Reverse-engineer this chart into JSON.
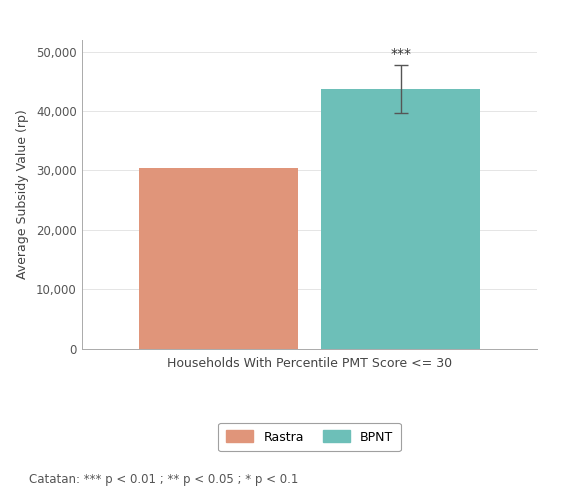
{
  "categories": [
    "Rastra",
    "BPNT"
  ],
  "values": [
    30500,
    43700
  ],
  "bar_colors": [
    "#e0957a",
    "#6dbfb8"
  ],
  "error_bar": [
    null,
    4000
  ],
  "ylabel": "Average Subsidy Value (rp)",
  "xlabel": "Households With Percentile PMT Score <= 30",
  "ylim": [
    0,
    52000
  ],
  "yticks": [
    0,
    10000,
    20000,
    30000,
    40000,
    50000
  ],
  "ytick_labels": [
    "0",
    "10,000",
    "20,000",
    "30,000",
    "40,000",
    "50,000"
  ],
  "significance_label": "***",
  "footnote": "Catatan: *** p < 0.01 ; ** p < 0.05 ; * p < 0.1",
  "legend_labels": [
    "Rastra",
    "BPNT"
  ],
  "background_color": "#ffffff",
  "bar_width": 0.35,
  "x_positions": [
    0.3,
    0.7
  ],
  "xlim": [
    0.0,
    1.0
  ],
  "axis_fontsize": 9,
  "tick_fontsize": 8.5,
  "legend_fontsize": 9,
  "footnote_fontsize": 8.5,
  "sig_fontsize": 10
}
